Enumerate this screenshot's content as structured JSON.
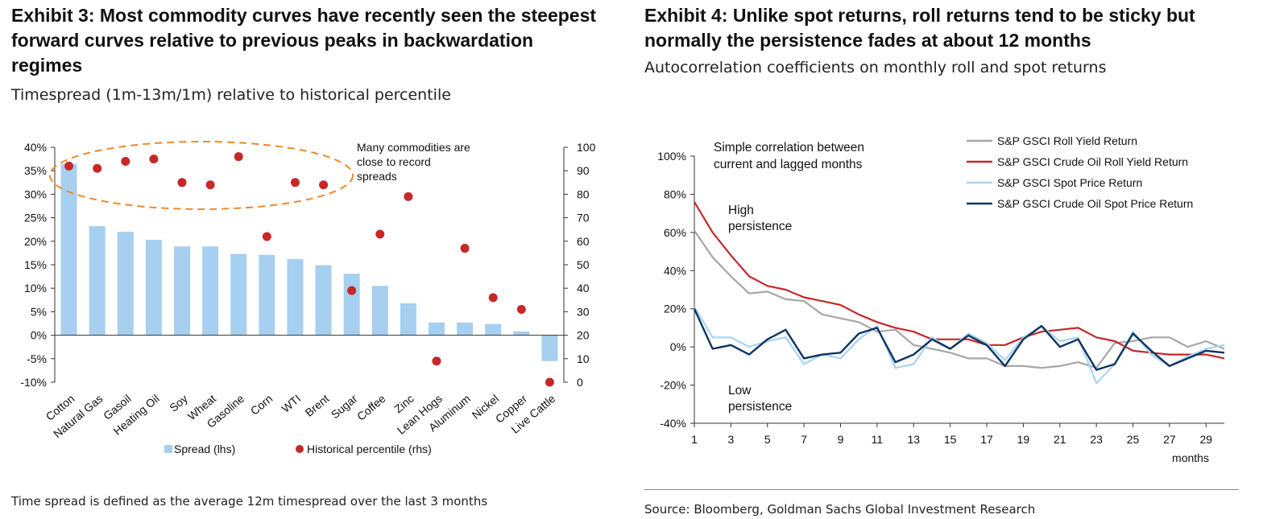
{
  "exhibit3": {
    "title": "Exhibit 3: Most commodity curves have recently seen the steepest forward curves relative to previous peaks in backwardation regimes",
    "subtitle": "Timespread (1m-13m/1m) relative to historical percentile",
    "annotation": "Many commodities are close to record spreads",
    "footnote": "Time spread is defined as the average 12m timespread over the last 3 months",
    "legend": {
      "bars": "Spread (lhs)",
      "dots": "Historical percentile (rhs)"
    },
    "colors": {
      "bars": "#a6cff0",
      "dots": "#c62828",
      "ellipse": "#ee8a2a"
    }
  },
  "exhibit4": {
    "title": "Exhibit 4: Unlike spot returns, roll returns tend to be sticky but normally the persistence fades at about 12 months",
    "subtitle": "Autocorrelation coefficients on monthly roll and spot returns",
    "inner_note": "Simple correlation between current and lagged months",
    "high_label": "High persistence",
    "low_label": "Low persistence",
    "source": "Source: Bloomberg, Goldman Sachs Global Investment Research"
  },
  "chart_data": [
    {
      "type": "bar",
      "categories": [
        "Cotton",
        "Natural Gas",
        "Gasoil",
        "Heating Oil",
        "Soy",
        "Wheat",
        "Gasoline",
        "Corn",
        "WTI",
        "Brent",
        "Sugar",
        "Coffee",
        "Zinc",
        "Lean Hogs",
        "Aluminum",
        "Nickel",
        "Copper",
        "Live Cattle"
      ],
      "series": [
        {
          "name": "Spread (lhs)",
          "axis": "left",
          "type": "bar",
          "color": "#a6cff0",
          "values": [
            0.365,
            0.232,
            0.22,
            0.203,
            0.189,
            0.189,
            0.173,
            0.171,
            0.162,
            0.149,
            0.131,
            0.105,
            0.068,
            0.027,
            0.027,
            0.024,
            0.008,
            -0.055
          ]
        },
        {
          "name": "Historical percentile (rhs)",
          "axis": "right",
          "type": "scatter",
          "color": "#c62828",
          "values": [
            92,
            91,
            94,
            95,
            85,
            84,
            96,
            62,
            85,
            84,
            39,
            63,
            79,
            9,
            57,
            36,
            31,
            0
          ]
        }
      ],
      "ylim_left": [
        -0.1,
        0.4
      ],
      "yticks_left": [
        "40%",
        "35%",
        "30%",
        "25%",
        "20%",
        "15%",
        "10%",
        "5%",
        "0%",
        "-5%",
        "-10%"
      ],
      "ylim_right": [
        0,
        100
      ],
      "yticks_right": [
        "100",
        "90",
        "80",
        "70",
        "60",
        "50",
        "40",
        "30",
        "20",
        "10",
        "0"
      ],
      "legend": "bottom"
    },
    {
      "type": "line",
      "x": [
        1,
        2,
        3,
        4,
        5,
        6,
        7,
        8,
        9,
        10,
        11,
        12,
        13,
        14,
        15,
        16,
        17,
        18,
        19,
        20,
        21,
        22,
        23,
        24,
        25,
        26,
        27,
        28,
        29,
        30
      ],
      "xticks": [
        "1",
        "3",
        "5",
        "7",
        "9",
        "11",
        "13",
        "15",
        "17",
        "19",
        "21",
        "23",
        "25",
        "27",
        "29"
      ],
      "xlabel": "months",
      "ylim": [
        -0.4,
        1.0
      ],
      "yticks": [
        "100%",
        "80%",
        "60%",
        "40%",
        "20%",
        "0%",
        "-20%",
        "-40%"
      ],
      "legend": "top-right",
      "series": [
        {
          "name": "S&P GSCI Roll Yield Return",
          "color": "#a6a6a6",
          "width": 2.2,
          "values": [
            0.61,
            0.47,
            0.37,
            0.28,
            0.29,
            0.25,
            0.24,
            0.17,
            0.15,
            0.13,
            0.08,
            0.09,
            0.01,
            -0.01,
            -0.03,
            -0.06,
            -0.06,
            -0.1,
            -0.1,
            -0.11,
            -0.1,
            -0.08,
            -0.11,
            0.02,
            0.03,
            0.05,
            0.05,
            0.0,
            0.03,
            -0.01
          ]
        },
        {
          "name": "S&P GSCI Crude Oil Roll Yield Return",
          "color": "#c62828",
          "width": 2.2,
          "values": [
            0.76,
            0.6,
            0.48,
            0.37,
            0.32,
            0.3,
            0.26,
            0.24,
            0.22,
            0.17,
            0.13,
            0.1,
            0.08,
            0.04,
            0.04,
            0.04,
            0.01,
            0.01,
            0.05,
            0.08,
            0.09,
            0.1,
            0.05,
            0.03,
            -0.02,
            -0.03,
            -0.04,
            -0.04,
            -0.04,
            -0.06
          ]
        },
        {
          "name": "S&P GSCI Spot Price Return",
          "color": "#a8d4f0",
          "width": 2.2,
          "values": [
            0.21,
            0.05,
            0.05,
            0.0,
            0.03,
            0.05,
            -0.09,
            -0.04,
            -0.06,
            0.04,
            0.11,
            -0.11,
            -0.09,
            0.05,
            -0.01,
            0.07,
            0.02,
            -0.07,
            0.05,
            0.11,
            0.03,
            0.05,
            -0.19,
            -0.09,
            0.08,
            -0.04,
            -0.1,
            -0.05,
            -0.01,
            0.01
          ]
        },
        {
          "name": "S&P GSCI Crude Oil Spot Price Return",
          "color": "#0d3563",
          "width": 2.4,
          "values": [
            0.2,
            -0.01,
            0.01,
            -0.04,
            0.04,
            0.09,
            -0.06,
            -0.04,
            -0.03,
            0.07,
            0.1,
            -0.08,
            -0.04,
            0.04,
            -0.01,
            0.06,
            0.01,
            -0.1,
            0.04,
            0.11,
            0.0,
            0.04,
            -0.12,
            -0.09,
            0.07,
            -0.02,
            -0.1,
            -0.06,
            -0.02,
            -0.03
          ]
        }
      ]
    }
  ]
}
